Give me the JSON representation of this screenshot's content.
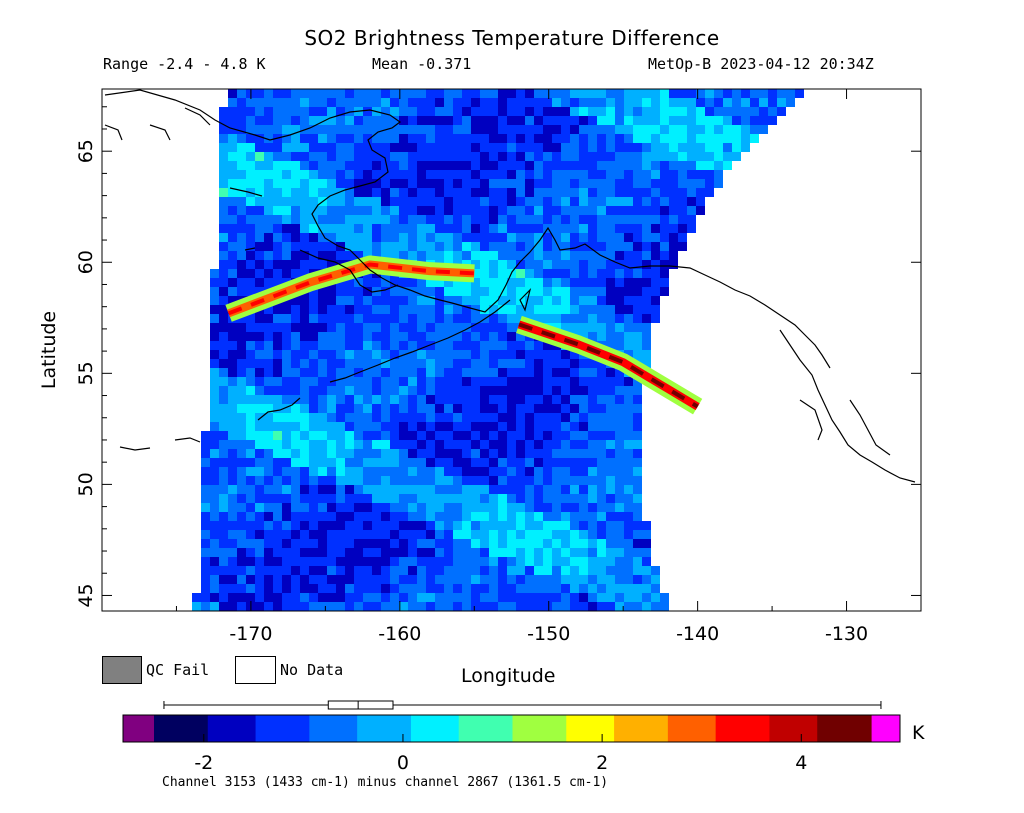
{
  "header": {
    "title": "SO2 Brightness Temperature Difference",
    "range": "Range -2.4 - 4.8 K",
    "mean": "Mean -0.371",
    "satellite": "MetOp-B 2023-04-12 20:34Z"
  },
  "legend": {
    "qc_fail": "QC Fail",
    "no_data": "No Data",
    "qc_fail_color": "#808080",
    "no_data_color": "#ffffff"
  },
  "colorbar": {
    "unit": "K",
    "min": -2.5,
    "max": 4.7,
    "ticks": [
      "-2",
      "0",
      "2",
      "4"
    ],
    "tick_values": [
      -2,
      0,
      2,
      4
    ],
    "under_color": "#800080",
    "over_color": "#ff00ff",
    "colors": [
      "#000060",
      "#0000c0",
      "#0030ff",
      "#0070ff",
      "#00b0ff",
      "#00f0ff",
      "#40ffb0",
      "#a0ff40",
      "#ffff00",
      "#ffb000",
      "#ff6000",
      "#ff0000",
      "#c00000",
      "#700000"
    ],
    "boxplot": {
      "min": -2.4,
      "q1": -0.75,
      "median": -0.45,
      "q3": -0.1,
      "max": 4.8
    }
  },
  "footnote": "Channel 3153 (1433 cm-1) minus channel 2867 (1361.5 cm-1)",
  "chart_data": {
    "type": "heatmap",
    "title": "SO2 Brightness Temperature Difference",
    "xlabel": "Longitude",
    "ylabel": "Latitude",
    "xlim": [
      -180,
      -125
    ],
    "ylim": [
      44.3,
      67.8
    ],
    "x_ticks": [
      -170,
      -160,
      -150,
      -140,
      -130
    ],
    "x_tick_labels": [
      "-170",
      "-160",
      "-150",
      "-140",
      "-130"
    ],
    "y_ticks": [
      45,
      50,
      55,
      60,
      65
    ],
    "y_tick_labels": [
      "45",
      "50",
      "55",
      "60",
      "65"
    ],
    "value_range": [
      -2.4,
      4.8
    ],
    "mean": -0.371,
    "units": "K",
    "plumes": [
      {
        "lon": [
          -171.5,
          -166,
          -162,
          -158,
          -155
        ],
        "lat": [
          57.7,
          59.1,
          59.9,
          59.6,
          59.5
        ],
        "peak": 3.6
      },
      {
        "lon": [
          -152,
          -148,
          -145,
          -142,
          -140
        ],
        "lat": [
          57.2,
          56.3,
          55.5,
          54.3,
          53.5
        ],
        "peak": 4.5
      }
    ]
  }
}
